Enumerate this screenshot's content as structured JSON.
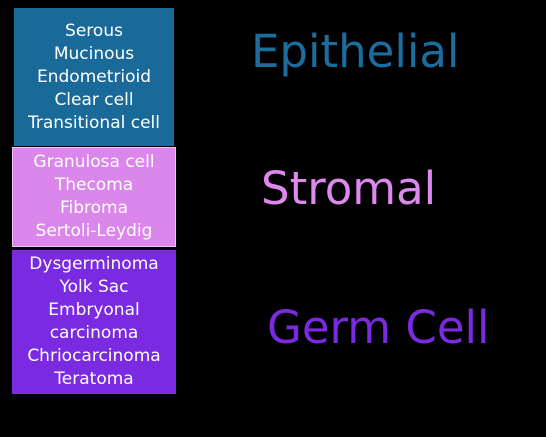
{
  "colors": {
    "background": "#000000",
    "epithelial": "#1a6a99",
    "stromal": "#db86ea",
    "germ_cell": "#7a2ae0",
    "item_text": "#ffffff"
  },
  "categories": [
    {
      "heading": "Epithelial",
      "items": [
        "Serous",
        "Mucinous",
        "Endometrioid",
        "Clear cell",
        "Transitional cell"
      ]
    },
    {
      "heading": "Stromal",
      "items": [
        "Granulosa cell",
        "Thecoma",
        "Fibroma",
        "Sertoli-Leydig"
      ]
    },
    {
      "heading": "Germ Cell",
      "items": [
        "Dysgerminoma",
        "Yolk Sac",
        "Embryonal",
        "carcinoma",
        "Chriocarcinoma",
        "Teratoma"
      ]
    }
  ]
}
